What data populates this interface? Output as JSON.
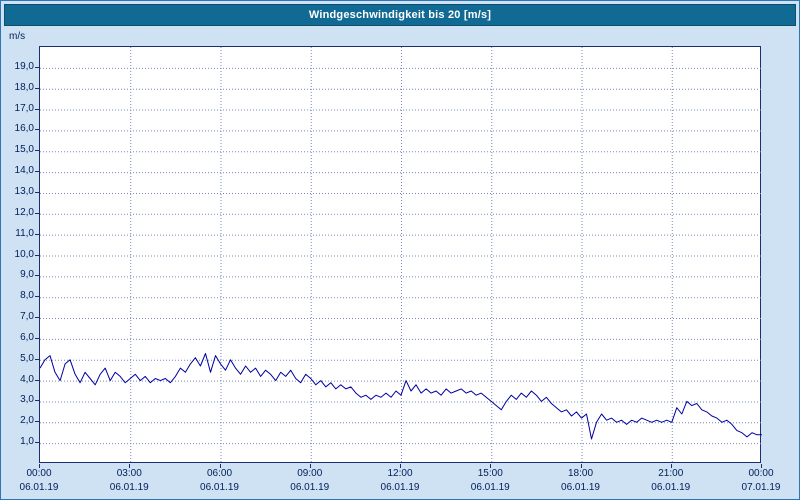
{
  "title": "Windgeschwindigkeit bis 20 [m/s]",
  "colors": {
    "title_bar_bg": "#116a93",
    "window_bg": "#cfe2f3",
    "plot_bg": "#ffffff",
    "line": "#0000a2",
    "grid": "#7788bb",
    "axis": "#1b2f6e",
    "label_text": "#001e5a"
  },
  "chart_data": {
    "type": "line",
    "title": "Windgeschwindigkeit bis 20 [m/s]",
    "ylabel_unit": "m/s",
    "ylim": [
      0,
      20
    ],
    "xlim_hours": [
      0,
      24
    ],
    "grid": true,
    "y_tick_labels": [
      "19,0",
      "18,0",
      "17,0",
      "16,0",
      "15,0",
      "14,0",
      "13,0",
      "12,0",
      "11,0",
      "10,0",
      "9,0",
      "8,0",
      "7,0",
      "6,0",
      "5,0",
      "4,0",
      "3,0",
      "2,0",
      "1,0"
    ],
    "x_tick_times": [
      "00:00",
      "03:00",
      "06:00",
      "09:00",
      "12:00",
      "15:00",
      "18:00",
      "21:00",
      "00:00"
    ],
    "x_tick_dates": [
      "06.01.19",
      "06.01.19",
      "06.01.19",
      "06.01.19",
      "06.01.19",
      "06.01.19",
      "06.01.19",
      "06.01.19",
      "07.01.19"
    ],
    "series": {
      "interval_minutes": 10,
      "values": [
        4.6,
        5.0,
        5.2,
        4.4,
        4.0,
        4.8,
        5.0,
        4.3,
        3.9,
        4.4,
        4.1,
        3.8,
        4.3,
        4.6,
        4.0,
        4.4,
        4.2,
        3.9,
        4.1,
        4.3,
        4.0,
        4.2,
        3.9,
        4.1,
        4.0,
        4.1,
        3.9,
        4.2,
        4.6,
        4.4,
        4.8,
        5.1,
        4.7,
        5.3,
        4.4,
        5.2,
        4.8,
        4.5,
        5.0,
        4.6,
        4.3,
        4.7,
        4.4,
        4.6,
        4.2,
        4.5,
        4.3,
        4.0,
        4.4,
        4.2,
        4.5,
        4.1,
        3.9,
        4.3,
        4.1,
        3.8,
        4.0,
        3.7,
        3.9,
        3.6,
        3.8,
        3.6,
        3.7,
        3.4,
        3.2,
        3.3,
        3.1,
        3.3,
        3.2,
        3.4,
        3.2,
        3.5,
        3.3,
        4.0,
        3.5,
        3.8,
        3.4,
        3.6,
        3.4,
        3.5,
        3.3,
        3.6,
        3.4,
        3.5,
        3.6,
        3.4,
        3.5,
        3.3,
        3.4,
        3.2,
        3.0,
        2.8,
        2.6,
        3.0,
        3.3,
        3.1,
        3.4,
        3.2,
        3.5,
        3.3,
        3.0,
        3.2,
        2.9,
        2.7,
        2.5,
        2.6,
        2.3,
        2.5,
        2.2,
        2.4,
        1.2,
        2.0,
        2.4,
        2.1,
        2.2,
        2.0,
        2.1,
        1.9,
        2.1,
        2.0,
        2.2,
        2.1,
        2.0,
        2.1,
        2.0,
        2.1,
        2.0,
        2.7,
        2.4,
        3.0,
        2.8,
        2.9,
        2.6,
        2.5,
        2.3,
        2.2,
        2.0,
        2.1,
        1.9,
        1.6,
        1.5,
        1.3,
        1.5,
        1.4,
        1.4
      ]
    }
  }
}
